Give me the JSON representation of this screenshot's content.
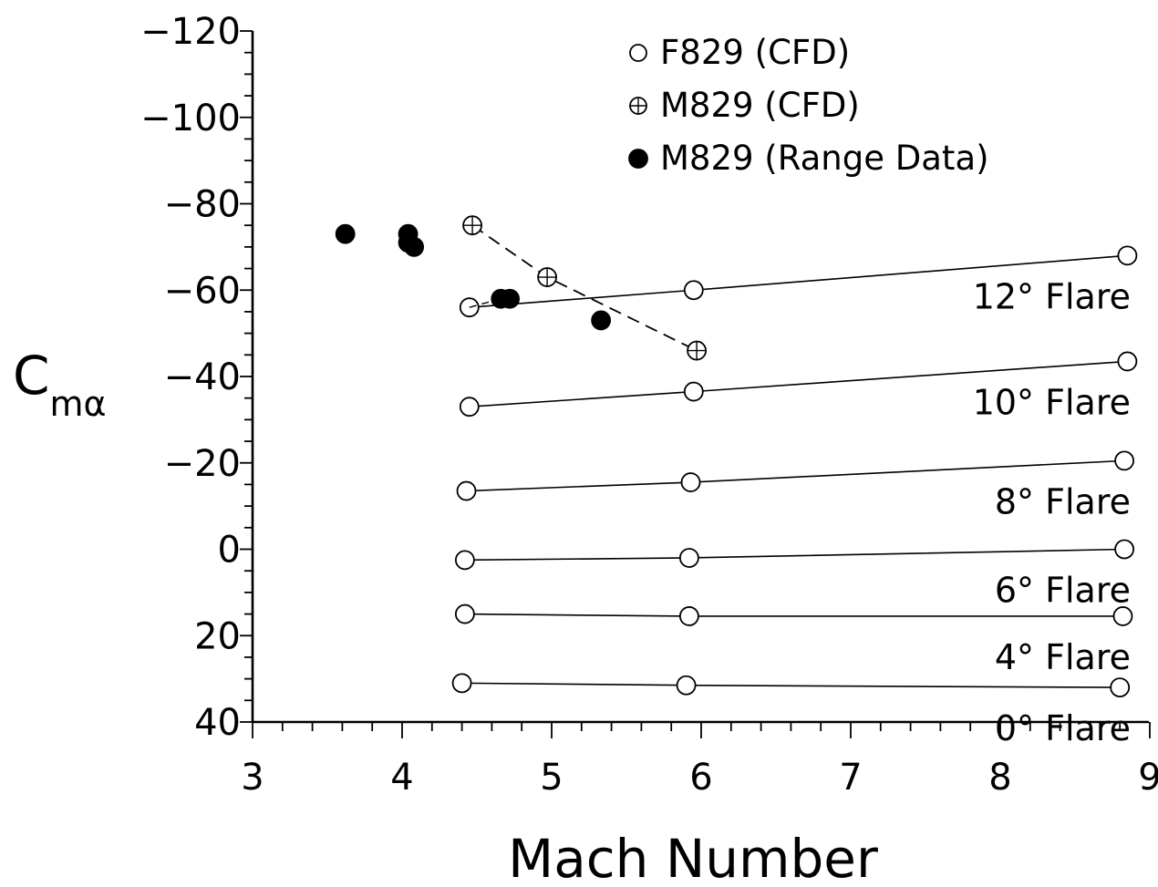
{
  "chart_data": {
    "type": "scatter",
    "xlabel": "Mach Number",
    "ylabel": {
      "main": "C",
      "sub": "mα"
    },
    "xlim": [
      3,
      9
    ],
    "ylim": [
      40,
      -120
    ],
    "x_ticks": [
      3,
      4,
      5,
      6,
      7,
      8,
      9
    ],
    "x_tick_labels": [
      "3",
      "4",
      "5",
      "6",
      "7",
      "8",
      "9"
    ],
    "y_ticks": [
      -120,
      -100,
      -80,
      -60,
      -40,
      -20,
      0,
      20,
      40
    ],
    "y_tick_labels": [
      "−120",
      "−100",
      "−80",
      "−60",
      "−40",
      "−20",
      "0",
      "20",
      "40"
    ],
    "y_inverted": true,
    "grid": false,
    "legend_position": "top-center",
    "legend": [
      {
        "marker": "open-circle",
        "label": "F829 (CFD)"
      },
      {
        "marker": "crossed-circle",
        "label": "M829 (CFD)"
      },
      {
        "marker": "filled-circle",
        "label": "M829 (Range Data)"
      }
    ],
    "series": [
      {
        "name": "12° Flare",
        "marker": "open-circle",
        "line": "solid",
        "x": [
          4.45,
          5.95,
          8.85
        ],
        "y": [
          -56,
          -60,
          -68
        ]
      },
      {
        "name": "10° Flare",
        "marker": "open-circle",
        "line": "solid",
        "x": [
          4.45,
          5.95,
          8.85
        ],
        "y": [
          -33,
          -36.5,
          -43.5
        ]
      },
      {
        "name": "8° Flare",
        "marker": "open-circle",
        "line": "solid",
        "x": [
          4.43,
          5.93,
          8.83
        ],
        "y": [
          -13.5,
          -15.5,
          -20.5
        ]
      },
      {
        "name": "6° Flare",
        "marker": "open-circle",
        "line": "solid",
        "x": [
          4.42,
          5.92,
          8.83
        ],
        "y": [
          2.5,
          2,
          0
        ]
      },
      {
        "name": "4° Flare",
        "marker": "open-circle",
        "line": "solid",
        "x": [
          4.42,
          5.92,
          8.82
        ],
        "y": [
          15,
          15.5,
          15.5
        ]
      },
      {
        "name": "0° Flare",
        "marker": "open-circle",
        "line": "solid",
        "x": [
          4.4,
          5.9,
          8.8
        ],
        "y": [
          31,
          31.5,
          32
        ]
      },
      {
        "name": "M829 (CFD)",
        "marker": "crossed-circle",
        "line": "dashed",
        "x": [
          4.47,
          4.97,
          5.97
        ],
        "y": [
          -75,
          -63,
          -46
        ]
      },
      {
        "name": "M829 (Range Data)",
        "marker": "filled-circle",
        "line": "none",
        "x": [
          3.62,
          4.04,
          4.04,
          4.08,
          4.66,
          4.72,
          5.33
        ],
        "y": [
          -73,
          -73,
          -71,
          -70,
          -58,
          -58,
          -53
        ]
      }
    ]
  }
}
